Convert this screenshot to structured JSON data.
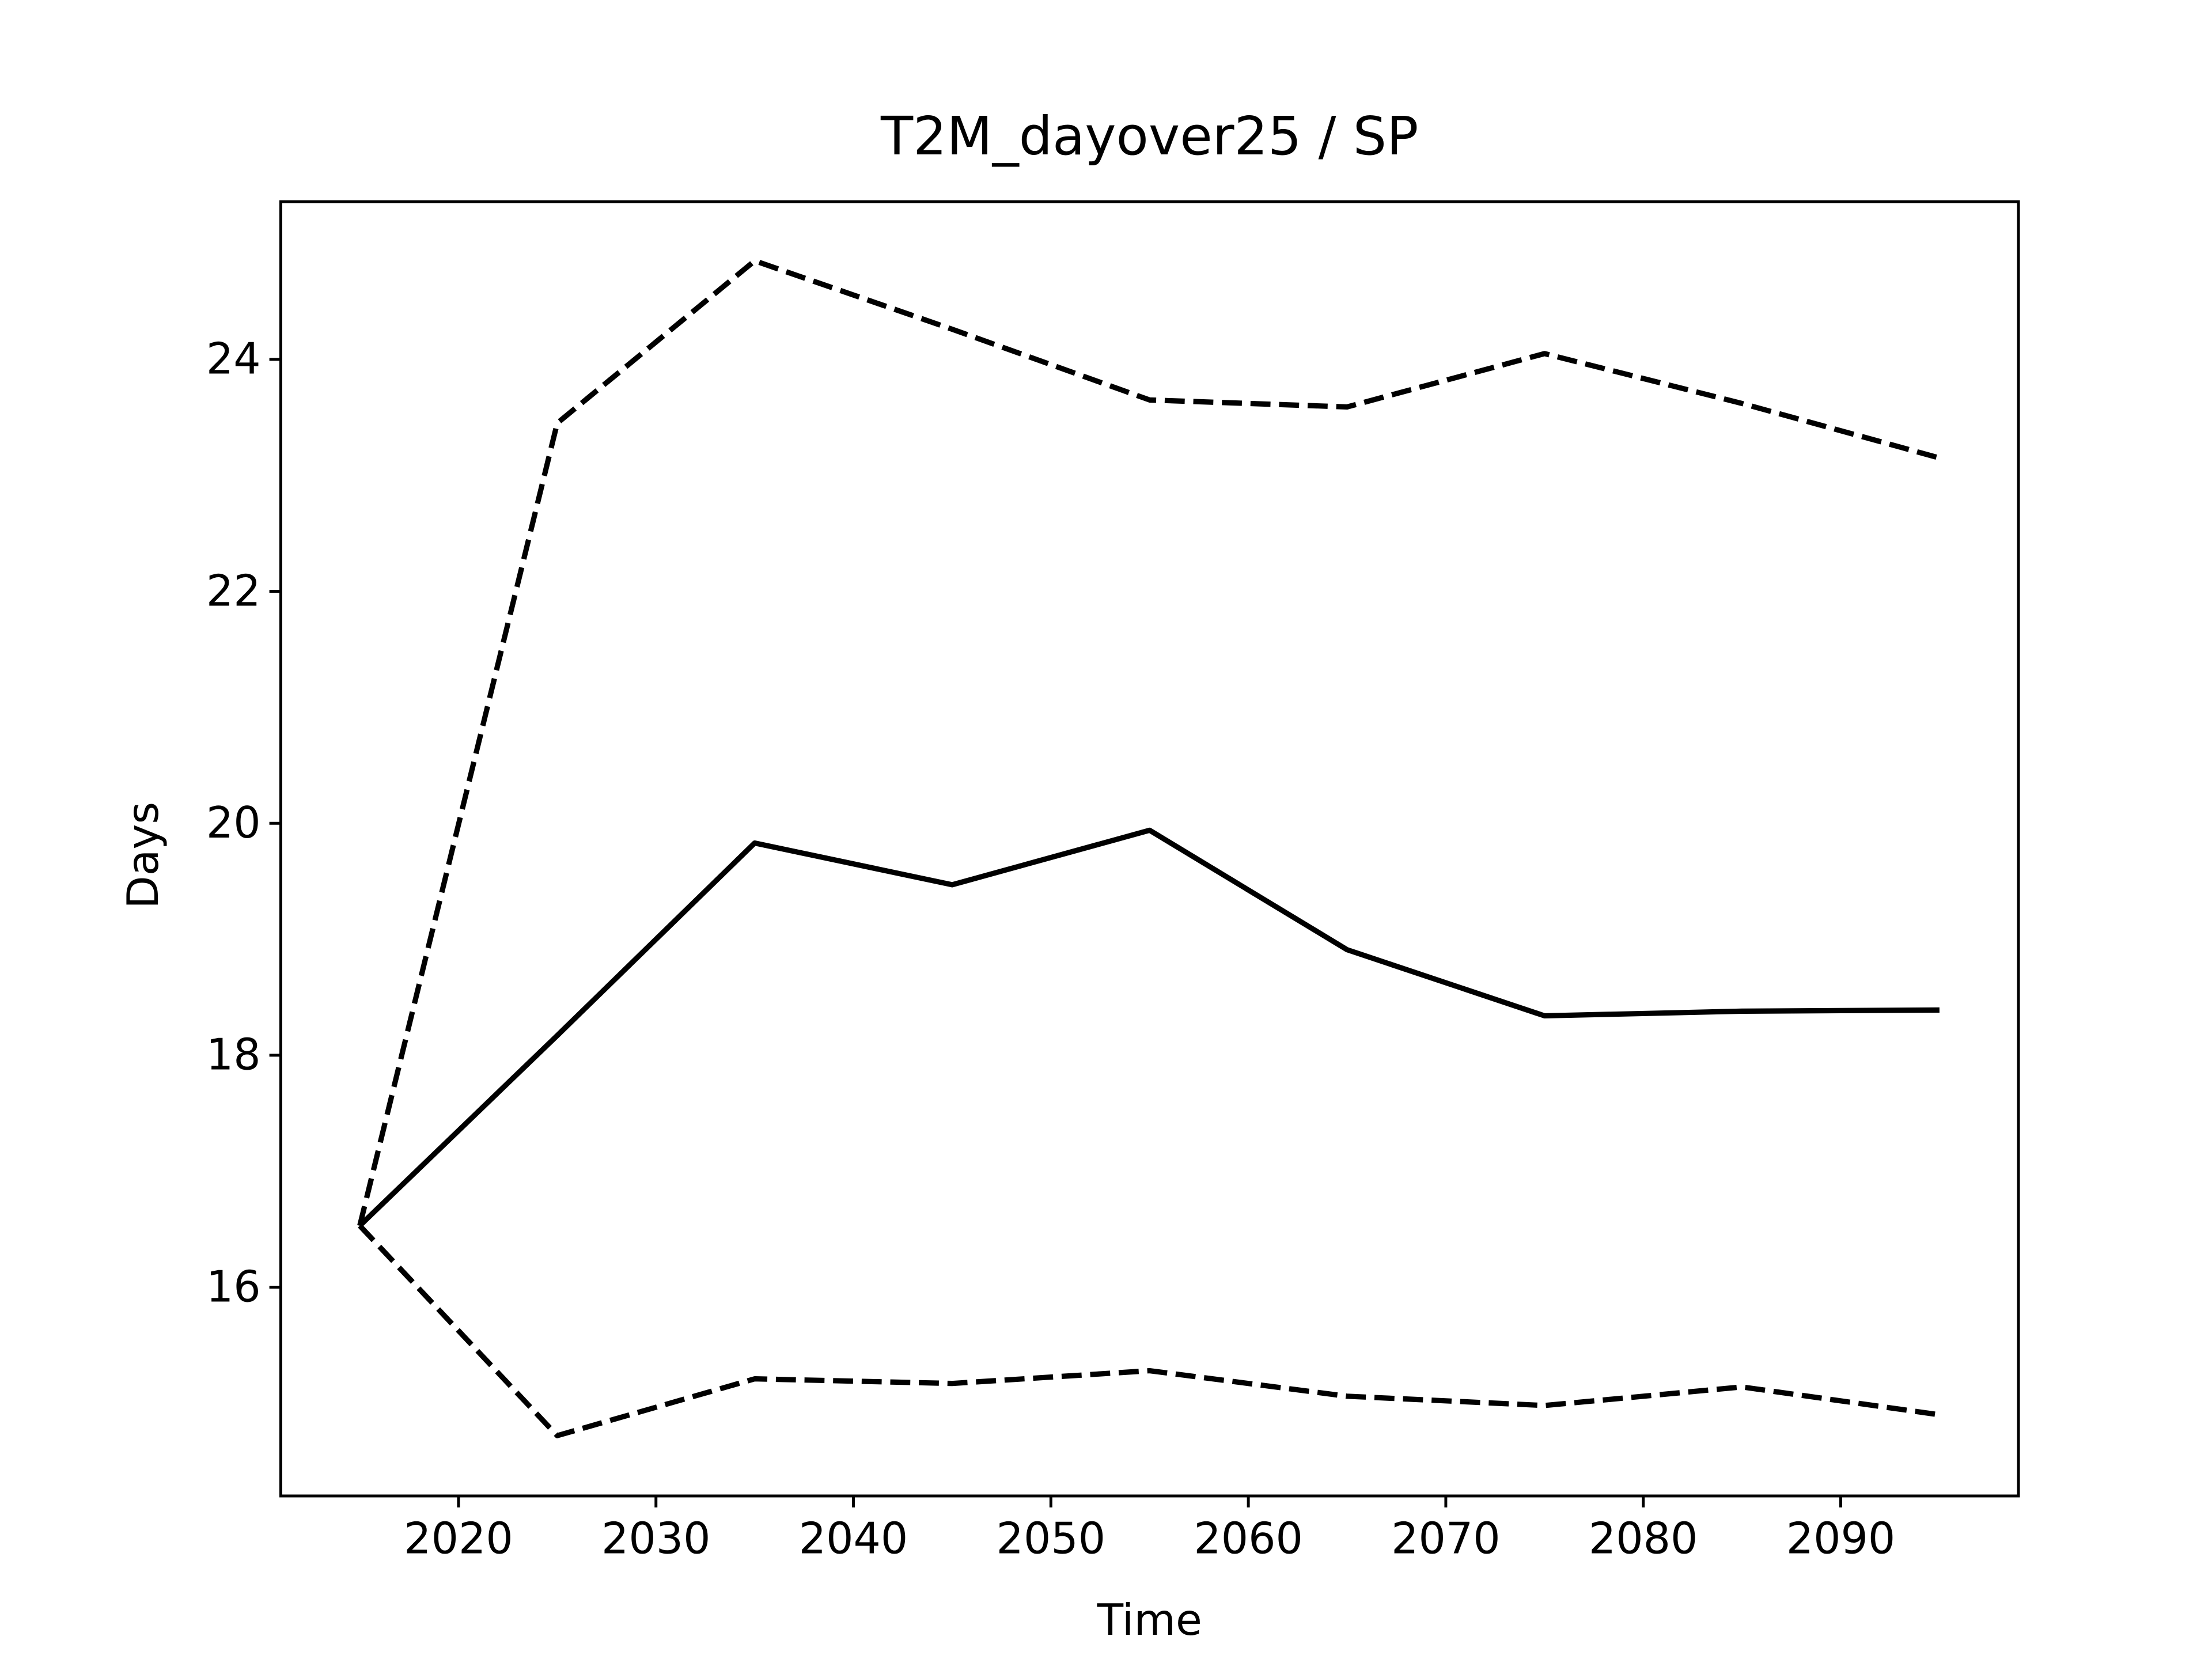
{
  "chart_data": {
    "type": "line",
    "title": "T2M_dayover25 / SP",
    "x_label": "Time",
    "y_label": "Days",
    "x": [
      2015,
      2025,
      2035,
      2045,
      2055,
      2065,
      2075,
      2085,
      2095
    ],
    "series": [
      {
        "color": "#000000",
        "style": "solid",
        "values": [
          16.53,
          18.17,
          19.83,
          19.47,
          19.94,
          18.91,
          18.34,
          18.38,
          18.39
        ]
      },
      {
        "color": "#000000",
        "style": "dashed",
        "values": [
          16.53,
          23.45,
          24.85,
          24.26,
          23.65,
          23.59,
          24.05,
          23.62,
          23.15
        ]
      },
      {
        "color": "#000000",
        "style": "dashed",
        "values": [
          16.53,
          14.72,
          15.21,
          15.17,
          15.28,
          15.06,
          14.98,
          15.14,
          14.9
        ]
      }
    ],
    "xlim": [
      2011,
      2099
    ],
    "xticks": [
      2020,
      2030,
      2040,
      2050,
      2060,
      2070,
      2080,
      2090
    ],
    "ylim": [
      14.2,
      25.36
    ],
    "yticks": [
      16,
      18,
      20,
      22,
      24
    ],
    "grid": false
  }
}
